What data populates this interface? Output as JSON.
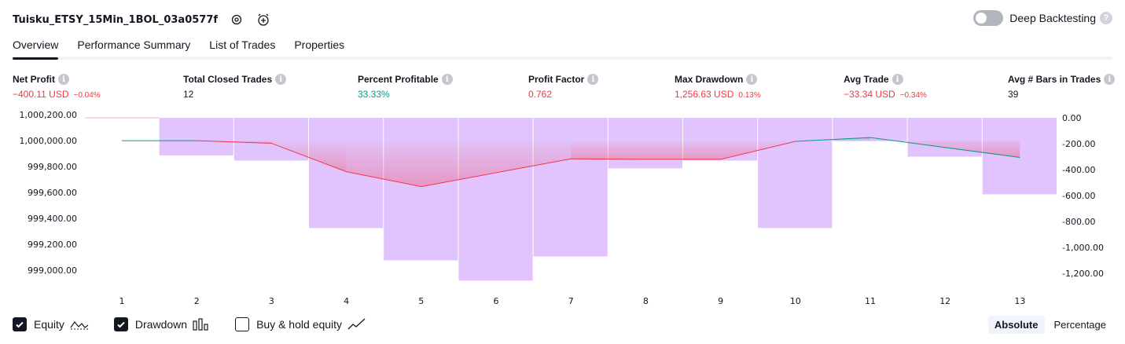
{
  "strategy": {
    "name": "Tuisku_ETSY_15Min_1BOL_03a0577f"
  },
  "deep_backtesting": {
    "label": "Deep Backtesting",
    "enabled": false,
    "help": "?"
  },
  "tabs": [
    {
      "label": "Overview",
      "active": true
    },
    {
      "label": "Performance Summary",
      "active": false
    },
    {
      "label": "List of Trades",
      "active": false
    },
    {
      "label": "Properties",
      "active": false
    }
  ],
  "metrics": {
    "net_profit": {
      "label": "Net Profit",
      "value": "−400.11 USD",
      "sub": "−0.04%"
    },
    "total_closed_trades": {
      "label": "Total Closed Trades",
      "value": "12"
    },
    "percent_profitable": {
      "label": "Percent Profitable",
      "value": "33.33%"
    },
    "profit_factor": {
      "label": "Profit Factor",
      "value": "0.762"
    },
    "max_drawdown": {
      "label": "Max Drawdown",
      "value": "1,256.63 USD",
      "sub": "0.13%"
    },
    "avg_trade": {
      "label": "Avg Trade",
      "value": "−33.34 USD",
      "sub": "−0.34%"
    },
    "avg_bars": {
      "label": "Avg # Bars in Trades",
      "value": "39"
    }
  },
  "info_icon": "i",
  "colors": {
    "negative": "#f23645",
    "positive": "#089981",
    "drawdown_bar": "#e1c4fd",
    "equity_line_down": "#f23645",
    "equity_line_up": "#089981"
  },
  "chart_data": {
    "type": "line",
    "x": [
      1,
      2,
      3,
      4,
      5,
      6,
      7,
      8,
      9,
      10,
      11,
      12,
      13
    ],
    "series": [
      {
        "name": "Equity",
        "axis": "left",
        "values": [
          999999.2,
          999999.2,
          999979,
          999760,
          999645,
          null,
          999859,
          999855,
          999855,
          999993.8,
          1000023.4,
          999958,
          999870
        ]
      },
      {
        "name": "Drawdown",
        "axis": "right",
        "type": "bar",
        "values": [
          0,
          -290,
          -330,
          -850,
          -1100,
          -1256.63,
          -1070,
          -390,
          -330,
          -850,
          -180,
          -300,
          -590
        ]
      }
    ],
    "equity_points": [
      {
        "x": 1,
        "y": 999999.2
      },
      {
        "x": 2,
        "y": 999999.2
      },
      {
        "x": 3,
        "y": 999979
      },
      {
        "x": 4,
        "y": 999760
      },
      {
        "x": 5,
        "y": 999645
      },
      {
        "x": 7,
        "y": 999859
      },
      {
        "x": 8,
        "y": 999855
      },
      {
        "x": 9,
        "y": 999855
      },
      {
        "x": 10,
        "y": 999993.8
      },
      {
        "x": 11,
        "y": 1000023.4
      },
      {
        "x": 13,
        "y": 999870
      }
    ],
    "drawdown_bars": [
      {
        "x": 2,
        "v": -290
      },
      {
        "x": 3,
        "v": -330
      },
      {
        "x": 4,
        "v": -850
      },
      {
        "x": 5,
        "v": -1100
      },
      {
        "x": 6,
        "v": -1256.63
      },
      {
        "x": 7,
        "v": -1070
      },
      {
        "x": 8,
        "v": -390
      },
      {
        "x": 9,
        "v": -330
      },
      {
        "x": 10,
        "v": -850
      },
      {
        "x": 11,
        "v": -180
      },
      {
        "x": 12,
        "v": -300
      },
      {
        "x": 13,
        "v": -590
      }
    ],
    "left_axis": {
      "min": 998900,
      "max": 1000220,
      "ticks": [
        "1,000,200.00",
        "1,000,000.00",
        "999,800.00",
        "999,600.00",
        "999,400.00",
        "999,200.00",
        "999,000.00"
      ],
      "tick_values": [
        1000200,
        1000000,
        999800,
        999600,
        999400,
        999200,
        999000
      ]
    },
    "right_axis": {
      "min": -1270,
      "max": 20,
      "ticks": [
        "0.00",
        "-200.00",
        "-400.00",
        "-600.00",
        "-800.00",
        "-1,000.00",
        "-1,200.00"
      ],
      "tick_values": [
        0,
        -200,
        -400,
        -600,
        -800,
        -1000,
        -1200
      ]
    },
    "x_ticks": [
      "1",
      "2",
      "3",
      "4",
      "5",
      "6",
      "7",
      "8",
      "9",
      "10",
      "11",
      "12",
      "13"
    ],
    "title": "",
    "xlabel": "",
    "ylabel": ""
  },
  "legend": [
    {
      "label": "Equity",
      "checked": true,
      "glyph": "equity-glyph-icon"
    },
    {
      "label": "Drawdown",
      "checked": true,
      "glyph": "drawdown-glyph-icon"
    },
    {
      "label": "Buy & hold equity",
      "checked": false,
      "glyph": "buyhold-glyph-icon"
    }
  ],
  "modes": [
    {
      "label": "Absolute",
      "active": true
    },
    {
      "label": "Percentage",
      "active": false
    }
  ]
}
